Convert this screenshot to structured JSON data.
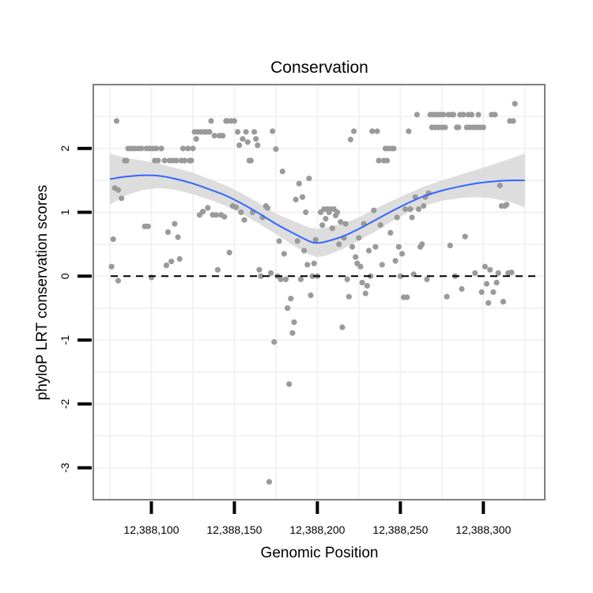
{
  "chart_data": {
    "type": "scatter",
    "title": "Conservation",
    "xlabel": "Genomic Position",
    "ylabel": "phyloP LRT conservation scores",
    "xlim": [
      12388065,
      12388337
    ],
    "ylim": [
      -3.5,
      3.0
    ],
    "x_ticks": [
      {
        "value": 12388100,
        "label": "12,388,100"
      },
      {
        "value": 12388150,
        "label": "12,388,150"
      },
      {
        "value": 12388200,
        "label": "12,388,200"
      },
      {
        "value": 12388250,
        "label": "12,388,250"
      },
      {
        "value": 12388300,
        "label": "12,388,300"
      }
    ],
    "y_ticks": [
      {
        "value": 2,
        "label": "2"
      },
      {
        "value": 1,
        "label": "1"
      },
      {
        "value": 0,
        "label": "0"
      },
      {
        "value": -1,
        "label": "-1"
      },
      {
        "value": -2,
        "label": "-2"
      },
      {
        "value": -3,
        "label": "-3"
      }
    ],
    "reference_line": {
      "y": 0,
      "style": "dashed"
    },
    "colors": {
      "points": "#9a9a9a",
      "smooth_line": "#3366ff",
      "ribbon": "#d9d9d9",
      "panel_border": "#7f7f7f",
      "grid": "#f2f2f2"
    },
    "smooth": {
      "x": [
        12388075,
        12388085,
        12388095,
        12388105,
        12388115,
        12388125,
        12388135,
        12388145,
        12388155,
        12388165,
        12388175,
        12388185,
        12388195,
        12388200,
        12388205,
        12388215,
        12388225,
        12388235,
        12388245,
        12388255,
        12388265,
        12388275,
        12388285,
        12388295,
        12388305,
        12388315,
        12388325
      ],
      "y": [
        1.52,
        1.56,
        1.58,
        1.57,
        1.52,
        1.45,
        1.36,
        1.26,
        1.13,
        0.98,
        0.82,
        0.68,
        0.55,
        0.52,
        0.54,
        0.62,
        0.74,
        0.88,
        1.02,
        1.15,
        1.26,
        1.34,
        1.4,
        1.45,
        1.48,
        1.5,
        1.5
      ],
      "lower": [
        1.12,
        1.27,
        1.35,
        1.38,
        1.35,
        1.28,
        1.2,
        1.1,
        0.97,
        0.82,
        0.66,
        0.49,
        0.34,
        0.3,
        0.32,
        0.42,
        0.56,
        0.7,
        0.86,
        1.0,
        1.11,
        1.18,
        1.22,
        1.24,
        1.22,
        1.17,
        1.08
      ],
      "upper": [
        1.92,
        1.85,
        1.81,
        1.76,
        1.69,
        1.62,
        1.52,
        1.42,
        1.29,
        1.14,
        0.98,
        0.87,
        0.76,
        0.74,
        0.76,
        0.82,
        0.92,
        1.06,
        1.18,
        1.3,
        1.41,
        1.5,
        1.58,
        1.66,
        1.74,
        1.83,
        1.92
      ]
    },
    "points": [
      [
        12388076,
        0.15
      ],
      [
        12388077,
        0.58
      ],
      [
        12388078,
        1.38
      ],
      [
        12388079,
        2.43
      ],
      [
        12388080,
        1.35
      ],
      [
        12388080,
        -0.07
      ],
      [
        12388082,
        1.22
      ],
      [
        12388084,
        1.81
      ],
      [
        12388085,
        1.81
      ],
      [
        12388086,
        2.0
      ],
      [
        12388088,
        2.0
      ],
      [
        12388090,
        2.0
      ],
      [
        12388092,
        2.0
      ],
      [
        12388094,
        2.0
      ],
      [
        12388096,
        0.78
      ],
      [
        12388097,
        2.0
      ],
      [
        12388098,
        0.78
      ],
      [
        12388099,
        2.0
      ],
      [
        12388100,
        -0.02
      ],
      [
        12388101,
        2.0
      ],
      [
        12388102,
        1.81
      ],
      [
        12388103,
        2.0
      ],
      [
        12388104,
        1.81
      ],
      [
        12388106,
        2.0
      ],
      [
        12388108,
        1.81
      ],
      [
        12388109,
        0.17
      ],
      [
        12388110,
        0.69
      ],
      [
        12388111,
        1.81
      ],
      [
        12388112,
        0.23
      ],
      [
        12388113,
        1.81
      ],
      [
        12388114,
        0.82
      ],
      [
        12388115,
        1.81
      ],
      [
        12388116,
        0.61
      ],
      [
        12388117,
        0.27
      ],
      [
        12388118,
        1.81
      ],
      [
        12388119,
        2.0
      ],
      [
        12388120,
        1.81
      ],
      [
        12388122,
        2.0
      ],
      [
        12388123,
        1.81
      ],
      [
        12388124,
        1.81
      ],
      [
        12388125,
        2.0
      ],
      [
        12388126,
        2.26
      ],
      [
        12388127,
        2.15
      ],
      [
        12388128,
        2.26
      ],
      [
        12388129,
        0.96
      ],
      [
        12388130,
        2.26
      ],
      [
        12388131,
        1.01
      ],
      [
        12388132,
        2.26
      ],
      [
        12388133,
        2.26
      ],
      [
        12388134,
        1.07
      ],
      [
        12388135,
        2.26
      ],
      [
        12388136,
        2.43
      ],
      [
        12388137,
        0.96
      ],
      [
        12388138,
        2.2
      ],
      [
        12388139,
        0.96
      ],
      [
        12388140,
        0.1
      ],
      [
        12388141,
        2.2
      ],
      [
        12388142,
        0.96
      ],
      [
        12388143,
        2.2
      ],
      [
        12388144,
        0.93
      ],
      [
        12388145,
        2.43
      ],
      [
        12388146,
        2.43
      ],
      [
        12388147,
        0.37
      ],
      [
        12388148,
        2.43
      ],
      [
        12388149,
        1.1
      ],
      [
        12388150,
        2.43
      ],
      [
        12388151,
        1.08
      ],
      [
        12388152,
        2.26
      ],
      [
        12388153,
        2.05
      ],
      [
        12388154,
        1.0
      ],
      [
        12388155,
        2.15
      ],
      [
        12388156,
        0.88
      ],
      [
        12388157,
        2.26
      ],
      [
        12388158,
        2.1
      ],
      [
        12388159,
        1.81
      ],
      [
        12388160,
        1.81
      ],
      [
        12388161,
        1.0
      ],
      [
        12388162,
        2.26
      ],
      [
        12388163,
        2.15
      ],
      [
        12388164,
        2.05
      ],
      [
        12388165,
        0.1
      ],
      [
        12388166,
        0.0
      ],
      [
        12388167,
        0.92
      ],
      [
        12388169,
        1.1
      ],
      [
        12388170,
        1.07
      ],
      [
        12388171,
        -3.22
      ],
      [
        12388172,
        0.05
      ],
      [
        12388173,
        2.27
      ],
      [
        12388174,
        -1.03
      ],
      [
        12388175,
        1.99
      ],
      [
        12388176,
        0.0
      ],
      [
        12388177,
        0.55
      ],
      [
        12388178,
        -0.05
      ],
      [
        12388179,
        1.64
      ],
      [
        12388180,
        0.35
      ],
      [
        12388181,
        -0.05
      ],
      [
        12388182,
        -0.5
      ],
      [
        12388183,
        -1.69
      ],
      [
        12388184,
        -0.35
      ],
      [
        12388185,
        -0.89
      ],
      [
        12388186,
        -0.72
      ],
      [
        12388187,
        1.2
      ],
      [
        12388188,
        0.55
      ],
      [
        12388189,
        1.45
      ],
      [
        12388190,
        -0.05
      ],
      [
        12388191,
        1.24
      ],
      [
        12388192,
        0.4
      ],
      [
        12388193,
        1.0
      ],
      [
        12388194,
        0.18
      ],
      [
        12388195,
        1.53
      ],
      [
        12388196,
        -0.3
      ],
      [
        12388197,
        0.0
      ],
      [
        12388198,
        0.2
      ],
      [
        12388199,
        0.57
      ],
      [
        12388200,
        0.0
      ],
      [
        12388202,
        1.0
      ],
      [
        12388203,
        0.8
      ],
      [
        12388204,
        1.05
      ],
      [
        12388205,
        0.9
      ],
      [
        12388206,
        1.05
      ],
      [
        12388207,
        1.0
      ],
      [
        12388208,
        1.05
      ],
      [
        12388209,
        0.75
      ],
      [
        12388210,
        1.05
      ],
      [
        12388211,
        0.95
      ],
      [
        12388212,
        1.0
      ],
      [
        12388213,
        0.5
      ],
      [
        12388214,
        0.85
      ],
      [
        12388215,
        -0.8
      ],
      [
        12388216,
        0.6
      ],
      [
        12388217,
        0.82
      ],
      [
        12388218,
        -0.05
      ],
      [
        12388219,
        -0.32
      ],
      [
        12388220,
        2.14
      ],
      [
        12388221,
        0.46
      ],
      [
        12388222,
        2.27
      ],
      [
        12388223,
        0.3
      ],
      [
        12388224,
        0.2
      ],
      [
        12388225,
        0.6
      ],
      [
        12388226,
        0.15
      ],
      [
        12388227,
        -0.1
      ],
      [
        12388228,
        0.82
      ],
      [
        12388229,
        -0.27
      ],
      [
        12388230,
        -0.15
      ],
      [
        12388231,
        0.4
      ],
      [
        12388232,
        0.0
      ],
      [
        12388233,
        2.27
      ],
      [
        12388234,
        1.03
      ],
      [
        12388235,
        0.46
      ],
      [
        12388236,
        2.27
      ],
      [
        12388237,
        1.81
      ],
      [
        12388238,
        0.8
      ],
      [
        12388239,
        0.18
      ],
      [
        12388240,
        1.81
      ],
      [
        12388241,
        2.0
      ],
      [
        12388242,
        1.81
      ],
      [
        12388243,
        2.0
      ],
      [
        12388244,
        0.68
      ],
      [
        12388245,
        2.0
      ],
      [
        12388246,
        2.0
      ],
      [
        12388247,
        0.24
      ],
      [
        12388248,
        0.92
      ],
      [
        12388249,
        0.46
      ],
      [
        12388250,
        0.0
      ],
      [
        12388251,
        0.35
      ],
      [
        12388252,
        -0.33
      ],
      [
        12388253,
        1.05
      ],
      [
        12388254,
        -0.33
      ],
      [
        12388255,
        2.27
      ],
      [
        12388256,
        1.05
      ],
      [
        12388257,
        0.92
      ],
      [
        12388258,
        0.03
      ],
      [
        12388259,
        1.24
      ],
      [
        12388260,
        2.53
      ],
      [
        12388261,
        1.05
      ],
      [
        12388262,
        0.46
      ],
      [
        12388263,
        0.5
      ],
      [
        12388264,
        1.1
      ],
      [
        12388265,
        1.24
      ],
      [
        12388266,
        -0.05
      ],
      [
        12388267,
        1.3
      ],
      [
        12388268,
        2.53
      ],
      [
        12388269,
        2.33
      ],
      [
        12388270,
        2.53
      ],
      [
        12388271,
        2.33
      ],
      [
        12388272,
        2.53
      ],
      [
        12388273,
        2.33
      ],
      [
        12388274,
        2.53
      ],
      [
        12388275,
        2.33
      ],
      [
        12388276,
        2.53
      ],
      [
        12388277,
        2.33
      ],
      [
        12388278,
        -0.32
      ],
      [
        12388279,
        2.53
      ],
      [
        12388280,
        0.48
      ],
      [
        12388281,
        2.53
      ],
      [
        12388282,
        2.53
      ],
      [
        12388283,
        0.0
      ],
      [
        12388284,
        2.33
      ],
      [
        12388285,
        2.33
      ],
      [
        12388286,
        2.53
      ],
      [
        12388287,
        -0.2
      ],
      [
        12388288,
        2.53
      ],
      [
        12388289,
        0.62
      ],
      [
        12388290,
        2.33
      ],
      [
        12388291,
        2.53
      ],
      [
        12388292,
        2.33
      ],
      [
        12388293,
        2.53
      ],
      [
        12388294,
        2.33
      ],
      [
        12388295,
        0.05
      ],
      [
        12388296,
        2.33
      ],
      [
        12388297,
        2.53
      ],
      [
        12388298,
        2.33
      ],
      [
        12388299,
        -0.25
      ],
      [
        12388300,
        2.33
      ],
      [
        12388301,
        0.15
      ],
      [
        12388302,
        -0.12
      ],
      [
        12388303,
        -0.42
      ],
      [
        12388304,
        0.1
      ],
      [
        12388305,
        2.53
      ],
      [
        12388306,
        -0.25
      ],
      [
        12388307,
        2.53
      ],
      [
        12388308,
        -0.1
      ],
      [
        12388309,
        0.05
      ],
      [
        12388310,
        1.42
      ],
      [
        12388311,
        1.1
      ],
      [
        12388312,
        -0.4
      ],
      [
        12388313,
        1.1
      ],
      [
        12388314,
        1.12
      ],
      [
        12388315,
        0.05
      ],
      [
        12388316,
        2.43
      ],
      [
        12388317,
        0.06
      ],
      [
        12388318,
        2.43
      ],
      [
        12388319,
        2.7
      ]
    ]
  }
}
